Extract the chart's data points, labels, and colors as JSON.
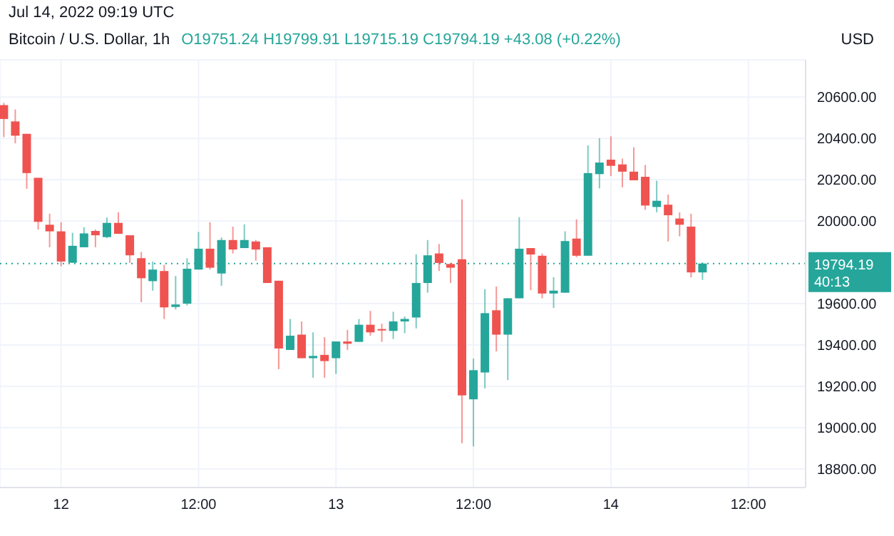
{
  "chart_data": {
    "type": "candlestick",
    "title": "Bitcoin / U.S. Dollar, 1h",
    "ylabel": "USD",
    "annotations": [
      "Jul 14, 2022 09:19 UTC",
      "O19751.24 H19799.91 L19715.19 C19794.19 +43.08 (+0.22%)",
      "40:13"
    ],
    "x": [
      "2022-07-11T19:00",
      "2022-07-11T20:00",
      "2022-07-11T21:00",
      "2022-07-11T22:00",
      "2022-07-11T23:00",
      "2022-07-12T00:00",
      "2022-07-12T01:00",
      "2022-07-12T02:00",
      "2022-07-12T03:00",
      "2022-07-12T04:00",
      "2022-07-12T05:00",
      "2022-07-12T06:00",
      "2022-07-12T07:00",
      "2022-07-12T08:00",
      "2022-07-12T09:00",
      "2022-07-12T10:00",
      "2022-07-12T11:00",
      "2022-07-12T12:00",
      "2022-07-12T13:00",
      "2022-07-12T14:00",
      "2022-07-12T15:00",
      "2022-07-12T16:00",
      "2022-07-12T17:00",
      "2022-07-12T18:00",
      "2022-07-12T19:00",
      "2022-07-12T20:00",
      "2022-07-12T21:00",
      "2022-07-12T22:00",
      "2022-07-12T23:00",
      "2022-07-13T00:00",
      "2022-07-13T01:00",
      "2022-07-13T02:00",
      "2022-07-13T03:00",
      "2022-07-13T04:00",
      "2022-07-13T05:00",
      "2022-07-13T06:00",
      "2022-07-13T07:00",
      "2022-07-13T08:00",
      "2022-07-13T09:00",
      "2022-07-13T10:00",
      "2022-07-13T11:00",
      "2022-07-13T12:00",
      "2022-07-13T13:00",
      "2022-07-13T14:00",
      "2022-07-13T15:00",
      "2022-07-13T16:00",
      "2022-07-13T17:00",
      "2022-07-13T18:00",
      "2022-07-13T19:00",
      "2022-07-13T20:00",
      "2022-07-13T21:00",
      "2022-07-13T22:00",
      "2022-07-13T23:00",
      "2022-07-14T00:00",
      "2022-07-14T01:00",
      "2022-07-14T02:00",
      "2022-07-14T03:00",
      "2022-07-14T04:00",
      "2022-07-14T05:00",
      "2022-07-14T06:00",
      "2022-07-14T07:00",
      "2022-07-14T08:00"
    ],
    "ohlc": [
      [
        20561,
        20572,
        20406,
        20494
      ],
      [
        20482,
        20540,
        20376,
        20413
      ],
      [
        20422,
        20422,
        20156,
        20232
      ],
      [
        20209,
        20209,
        19959,
        19996
      ],
      [
        19982,
        20035,
        19873,
        19950
      ],
      [
        19950,
        19994,
        19781,
        19804
      ],
      [
        19798,
        19943,
        19797,
        19880
      ],
      [
        19873,
        19970,
        19873,
        19940
      ],
      [
        19952,
        19959,
        19873,
        19931
      ],
      [
        19922,
        20017,
        19917,
        19991
      ],
      [
        19991,
        20042,
        19938,
        19938
      ],
      [
        19931,
        19931,
        19797,
        19834
      ],
      [
        19820,
        19850,
        19607,
        19723
      ],
      [
        19709,
        19804,
        19663,
        19765
      ],
      [
        19758,
        19788,
        19526,
        19582
      ],
      [
        19584,
        19734,
        19572,
        19596
      ],
      [
        19600,
        19820,
        19591,
        19769
      ],
      [
        19765,
        19947,
        19765,
        19866
      ],
      [
        19866,
        19994,
        19765,
        19774
      ],
      [
        19746,
        19920,
        19686,
        19908
      ],
      [
        19908,
        19973,
        19843,
        19862
      ],
      [
        19869,
        19984,
        19869,
        19908
      ],
      [
        19901,
        19908,
        19808,
        19862
      ],
      [
        19873,
        19873,
        19700,
        19700
      ],
      [
        19711,
        19711,
        19283,
        19383
      ],
      [
        19376,
        19526,
        19376,
        19445
      ],
      [
        19450,
        19514,
        19336,
        19336
      ],
      [
        19336,
        19461,
        19241,
        19347
      ],
      [
        19352,
        19438,
        19241,
        19322
      ],
      [
        19336,
        19417,
        19260,
        19417
      ],
      [
        19417,
        19473,
        19376,
        19406
      ],
      [
        19415,
        19526,
        19415,
        19498
      ],
      [
        19498,
        19565,
        19445,
        19461
      ],
      [
        19477,
        19503,
        19415,
        19470
      ],
      [
        19468,
        19561,
        19429,
        19514
      ],
      [
        19514,
        19538,
        19457,
        19526
      ],
      [
        19533,
        19839,
        19480,
        19700
      ],
      [
        19700,
        19908,
        19653,
        19834
      ],
      [
        19843,
        19889,
        19758,
        19797
      ],
      [
        19792,
        19797,
        19700,
        19774
      ],
      [
        19815,
        20105,
        18925,
        19156
      ],
      [
        19137,
        19334,
        18909,
        19278
      ],
      [
        19267,
        19670,
        19190,
        19554
      ],
      [
        19568,
        19683,
        19369,
        19450
      ],
      [
        19450,
        19626,
        19230,
        19626
      ],
      [
        19626,
        20019,
        19626,
        19866
      ],
      [
        19869,
        19869,
        19665,
        19838
      ],
      [
        19832,
        19843,
        19626,
        19649
      ],
      [
        19649,
        19728,
        19579,
        19663
      ],
      [
        19653,
        19950,
        19653,
        19903
      ],
      [
        19915,
        20008,
        19825,
        19832
      ],
      [
        19832,
        20366,
        19832,
        20232
      ],
      [
        20227,
        20401,
        20158,
        20283
      ],
      [
        20297,
        20410,
        20218,
        20267
      ],
      [
        20274,
        20302,
        20163,
        20239
      ],
      [
        20239,
        20357,
        20197,
        20197
      ],
      [
        20214,
        20271,
        20054,
        20075
      ],
      [
        20068,
        20195,
        20042,
        20098
      ],
      [
        20079,
        20128,
        19901,
        20028
      ],
      [
        20012,
        20042,
        19926,
        19982
      ],
      [
        19973,
        20035,
        19727,
        19751.24
      ],
      [
        19751.24,
        19799.91,
        19715.19,
        19794.19
      ]
    ],
    "xlim": [
      "2022-07-11T18:40",
      "2022-07-14T17:00"
    ],
    "xticks": [
      {
        "value": "2022-07-12T00:00",
        "label": "12"
      },
      {
        "value": "2022-07-12T12:00",
        "label": "12:00"
      },
      {
        "value": "2022-07-13T00:00",
        "label": "13"
      },
      {
        "value": "2022-07-13T12:00",
        "label": "12:00"
      },
      {
        "value": "2022-07-14T00:00",
        "label": "14"
      },
      {
        "value": "2022-07-14T12:00",
        "label": "12:00"
      }
    ],
    "ylim": [
      18710,
      20780
    ],
    "yticks": [
      {
        "value": 18800,
        "label": "18800.00"
      },
      {
        "value": 19000,
        "label": "19000.00"
      },
      {
        "value": 19200,
        "label": "19200.00"
      },
      {
        "value": 19400,
        "label": "19400.00"
      },
      {
        "value": 19600,
        "label": "19600.00"
      },
      {
        "value": 20000,
        "label": "20000.00"
      },
      {
        "value": 20200,
        "label": "20200.00"
      },
      {
        "value": 20400,
        "label": "20400.00"
      },
      {
        "value": 20600,
        "label": "20600.00"
      }
    ],
    "ref_lines": [
      {
        "axis": "y",
        "value": 19794.19,
        "label": "19794.19",
        "color": "#26a69a",
        "line_style": "dotted"
      }
    ],
    "grid": true
  }
}
